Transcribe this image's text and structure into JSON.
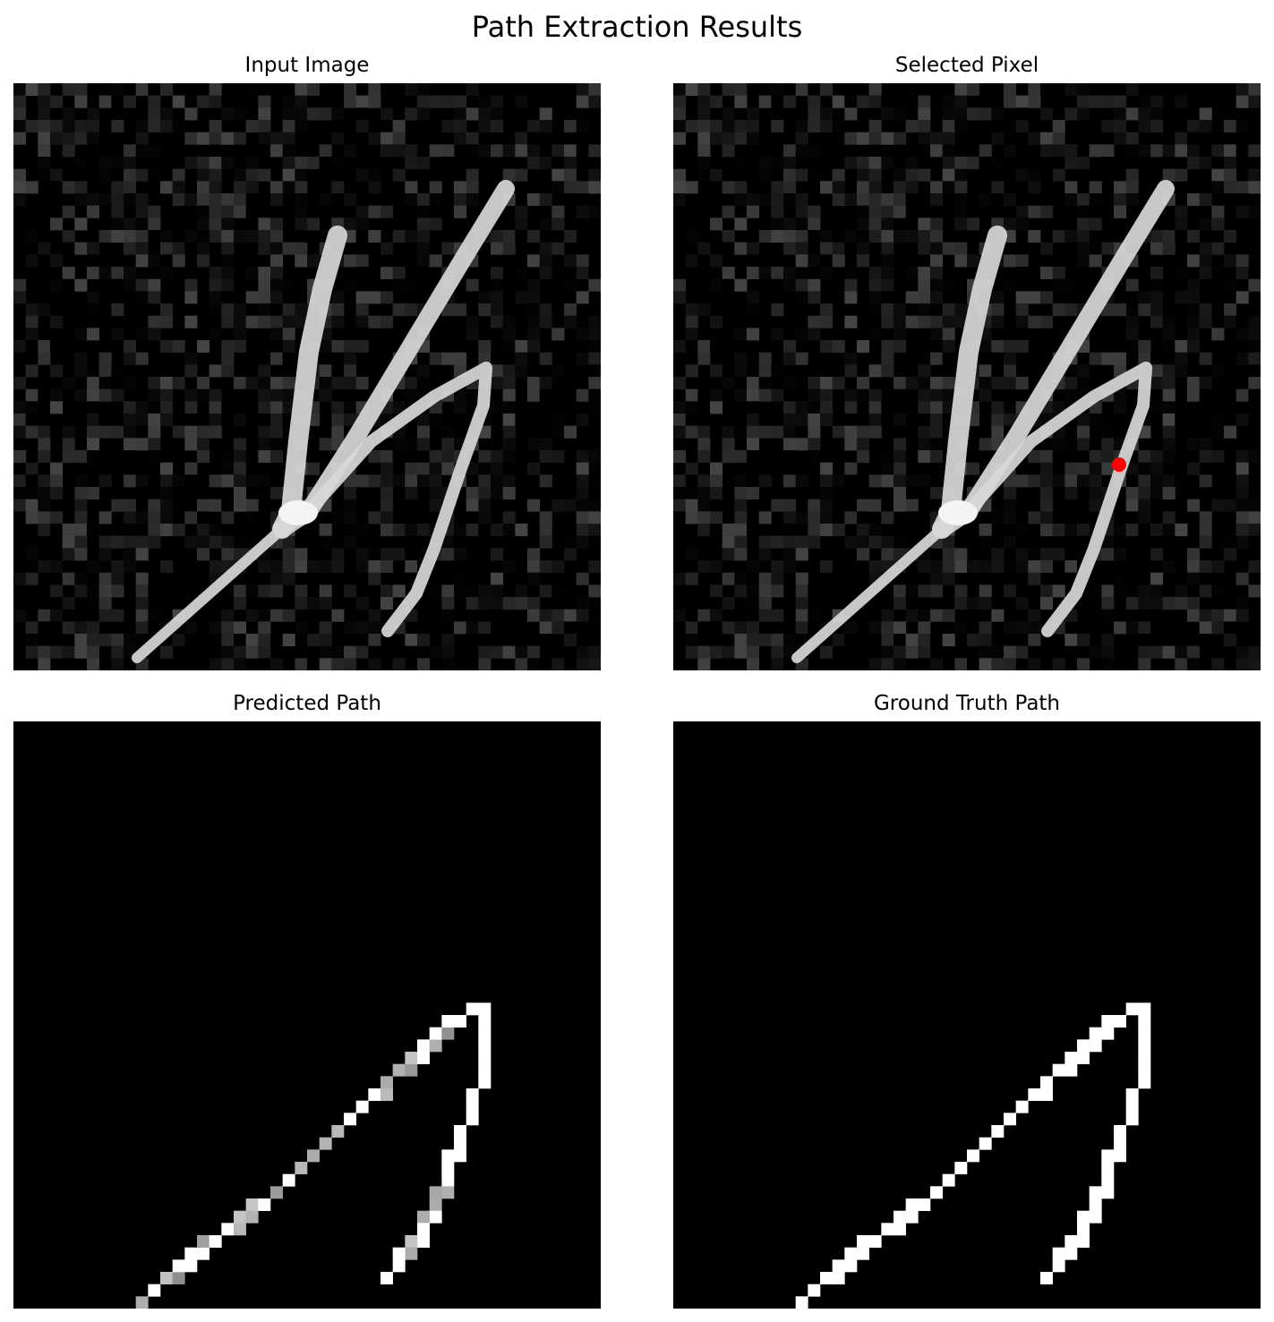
{
  "figure": {
    "title": "Path Extraction Results"
  },
  "panels": {
    "input": {
      "title": "Input Image"
    },
    "selected": {
      "title": "Selected Pixel"
    },
    "predicted": {
      "title": "Predicted Path"
    },
    "ground_truth": {
      "title": "Ground Truth Path"
    }
  },
  "colors": {
    "background": "#000000",
    "stroke": "#ffffff",
    "marker": "#ff0000"
  }
}
